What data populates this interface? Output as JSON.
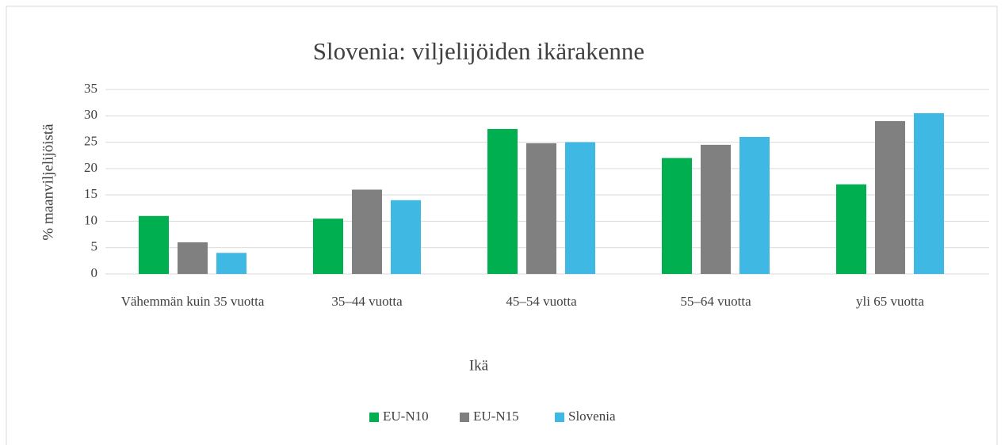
{
  "chart_data": {
    "type": "bar",
    "title": "Slovenia: viljelijöiden ikärakenne",
    "xlabel": "Ikä",
    "ylabel": "% maanviljelijöistä",
    "categories": [
      "Vähemmän kuin 35 vuotta",
      "35–44 vuotta",
      "45–54 vuotta",
      "55–64 vuotta",
      "yli 65 vuotta"
    ],
    "series": [
      {
        "name": "EU-N10",
        "color": "#00b050",
        "values": [
          11,
          10.5,
          27.5,
          22,
          17
        ]
      },
      {
        "name": "EU-N15",
        "color": "#808080",
        "values": [
          6,
          16,
          24.8,
          24.5,
          29
        ]
      },
      {
        "name": "Slovenia",
        "color": "#3fb8e4",
        "values": [
          4,
          14,
          25,
          26,
          30.5
        ]
      }
    ],
    "ylim": [
      0,
      35
    ],
    "yticks": [
      0,
      5,
      10,
      15,
      20,
      25,
      30,
      35
    ],
    "grid": true,
    "legend": "bottom"
  }
}
